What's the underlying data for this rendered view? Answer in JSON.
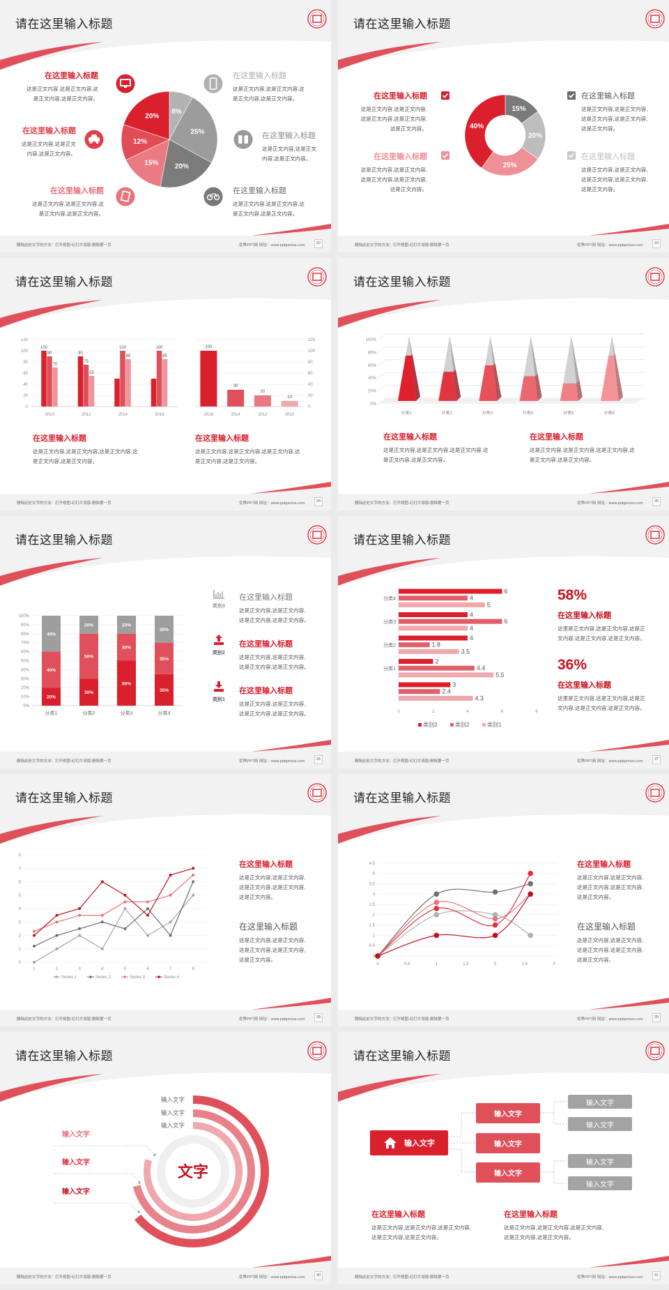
{
  "deck": {
    "footer_note": "删除此处文字的方法：打开视图-幻灯片母版-删除第一页",
    "brand": "优界PPT网",
    "website": "网址：www.pptgenius.com"
  },
  "colors": {
    "primary": "#d9202c",
    "secondary": "#e0505a",
    "light": "#ef959b",
    "gray": "#9e9e9e",
    "background": "#f2f2f2"
  },
  "slides": [
    {
      "title": "请在这里输入标题",
      "page": "32",
      "icons": [
        "monitor-icon",
        "car-icon",
        "book-icon",
        "phone-icon",
        "binoculars-icon",
        "bicycle-icon"
      ],
      "blocks": [
        {
          "title": "在这里输入标题",
          "body": "这是正文内容,这是正文内容,这\n是正文内容,这是正文内容。"
        },
        {
          "title": "在这里输入标题",
          "body": "这是正文内容,这是正文\n内容,这是正文内容。"
        },
        {
          "title": "在这里输入标题",
          "body": "这是正文内容,这是正文内容,这\n是正文内容,这是正文内容。"
        },
        {
          "title": "在这里输入标题",
          "body": "这是正文内容,这是正文内容,这\n是正文内容,这是正文内容。"
        },
        {
          "title": "在这里输入标题",
          "body": "这是正文内容,这是正文\n内容,这是正文内容。"
        },
        {
          "title": "在这里输入标题",
          "body": "这是正文内容,这是正文内容,这\n是正文内容,这是正文内容。"
        }
      ]
    },
    {
      "title": "请在这里输入标题",
      "page": "33",
      "blocks": [
        {
          "title": "在这里输入标题",
          "body": "这是正文内容,这是正文内容,\n这是正文内容,这是正文内容,\n这是正文内容。"
        },
        {
          "title": "在这里输入标题",
          "body": "这是正文内容,这是正文内容,\n这是正文内容,这是正文内容,\n这是正文内容。"
        },
        {
          "title": "在这里输入标题",
          "body": "这是正文内容,这是正文内容,\n这是正文内容,这是正文内容,\n这是正文内容。"
        },
        {
          "title": "在这里输入标题",
          "body": "这是正文内容,这是正文内容,\n这是正文内容,这是正文内容,\n这是正文内容。"
        }
      ]
    },
    {
      "title": "请在这里输入标题",
      "page": "34",
      "blocks": [
        {
          "title": "在这里输入标题",
          "body": "这是正文内容,这是正文内容,这是正文内容,这\n是正文内容,这是正文内容。"
        },
        {
          "title": "在这里输入标题",
          "body": "这是正文内容,这是正文内容,这是正文内容,这\n是正文内容,这是正文内容。"
        }
      ]
    },
    {
      "title": "请在这里输入标题",
      "page": "35",
      "blocks": [
        {
          "title": "在这里输入标题",
          "body": "这是正文内容,这是正文内容,这是正文内容,这\n是正文内容,这是正文内容。"
        },
        {
          "title": "在这里输入标题",
          "body": "这是正文内容,这是正文内容,这是正文内容,这\n是正文内容,这是正文内容。"
        }
      ]
    },
    {
      "title": "请在这里输入标题",
      "page": "36",
      "icon_labels": [
        "类别3",
        "类别2",
        "类别1"
      ],
      "blocks": [
        {
          "title": "在这里输入标题",
          "body": "这是正文内容,这是正文内容,\n这是正文内容,这是正文内容。"
        },
        {
          "title": "在这里输入标题",
          "body": "这是正文内容,这是正文内容,\n这是正文内容,这是正文内容。"
        },
        {
          "title": "在这里输入标题",
          "body": "这是正文内容,这是正文内容,\n这是正文内容,这是正文内容。"
        }
      ]
    },
    {
      "title": "请在这里输入标题",
      "page": "37",
      "stats": [
        "58%",
        "36%"
      ],
      "blocks": [
        {
          "title": "在这里输入标题",
          "body": "这里是正文内容,这是正文内容,这是正\n文内容,这是正文内容,这是正文内容。"
        },
        {
          "title": "在这里输入标题",
          "body": "这里是正文内容,这是正文内容,这是正\n文内容,这是正文内容,这是正文内容。"
        }
      ]
    },
    {
      "title": "请在这里输入标题",
      "page": "38",
      "blocks": [
        {
          "title": "在这里输入标题",
          "body": "这是正文内容,这是正文内容,\n这是正文内容,这是正文内容,\n这是正文内容。"
        },
        {
          "title": "在这里输入标题",
          "body": "这是正文内容,这是正文内容,\n这是正文内容,这是正文内容,\n这是正文内容。"
        }
      ]
    },
    {
      "title": "请在这里输入标题",
      "page": "39",
      "blocks": [
        {
          "title": "在这里输入标题",
          "body": "这是正文内容,这是正文内容,\n这是正文内容,这是正文内容,\n这是正文内容。"
        },
        {
          "title": "在这里输入标题",
          "body": "这是正文内容,这是正文内容,\n这是正文内容,这是正文内容,\n这是正文内容。"
        }
      ]
    },
    {
      "title": "请在这里输入标题",
      "page": "40",
      "center_label": "文字",
      "ring_labels": [
        "输入文字",
        "输入文字",
        "输入文字"
      ],
      "side_labels": [
        "输入文字",
        "输入文字",
        "输入文字"
      ],
      "ring_levels": [
        0.64,
        0.71,
        0.79
      ]
    },
    {
      "title": "请在这里输入标题",
      "page": "41",
      "tree": {
        "root": "输入文字",
        "branches": [
          "输入文字",
          "输入文字",
          "输入文字"
        ],
        "leaves": [
          "输入文字",
          "输入文字",
          "输入文字",
          "输入文字"
        ]
      },
      "blocks": [
        {
          "title": "在这里输入标题",
          "body": "这是正文内容,这是正文内容,这是正文内容,\n这是正文内容,这是正文内容。"
        },
        {
          "title": "在这里输入标题",
          "body": "这是正文内容,这是正文内容,这是正文内容,\n这是正文内容,这是正文内容。"
        }
      ]
    }
  ],
  "chart_data": [
    {
      "type": "pie",
      "values": [
        8,
        25,
        20,
        15,
        12,
        20
      ],
      "labels": [
        "8%",
        "25%",
        "20%",
        "15%",
        "12%",
        "20%"
      ],
      "colors": [
        "#b3b3b3",
        "#9c9c9c",
        "#7b7b7b",
        "#ec7a82",
        "#e24c57",
        "#d9202c"
      ]
    },
    {
      "type": "pie",
      "donut": true,
      "values": [
        15,
        20,
        25,
        40
      ],
      "labels": [
        "15%",
        "20%",
        "25%",
        "40%"
      ],
      "colors": [
        "#7a7a7a",
        "#bdbdbd",
        "#ef8f96",
        "#d9202c"
      ]
    },
    {
      "type": "bar",
      "categories": [
        "2010",
        "2012",
        "2014",
        "2016"
      ],
      "ylim": [
        0,
        120
      ],
      "grid": true,
      "series": [
        {
          "values": [
            100,
            90,
            50,
            50
          ],
          "labels": [
            "100",
            "90",
            "",
            ""
          ],
          "color": "#d9202c"
        },
        {
          "values": [
            90,
            75,
            100,
            100
          ],
          "labels": [
            "90",
            "75",
            "100",
            "100"
          ],
          "color": "#e0505a"
        },
        {
          "values": [
            70,
            55,
            85,
            85
          ],
          "labels": [
            "70",
            "55",
            "85",
            "85"
          ],
          "color": "#ef959b"
        }
      ]
    },
    {
      "type": "bar",
      "categories": [
        "2016",
        "2014",
        "2012",
        "2010"
      ],
      "values": [
        100,
        30,
        20,
        10
      ],
      "labels": [
        "100",
        "30",
        "20",
        "10"
      ],
      "ylim": [
        0,
        120
      ],
      "y_axis": "right",
      "grid": true,
      "colors": [
        "#d9202c",
        "#e0505a",
        "#e97880",
        "#f0a8ad"
      ]
    },
    {
      "type": "bar",
      "style": "3d-pyramid",
      "categories": [
        "分类1",
        "分类2",
        "分类3",
        "分类4",
        "分类5",
        "分类6"
      ],
      "values": [
        70,
        45,
        55,
        38,
        27,
        70
      ],
      "ylim": [
        0,
        100
      ],
      "unit": "%",
      "grid": true,
      "colors": [
        "#e0202c",
        "#e33540",
        "#e8505a",
        "#ec6870",
        "#f07f86",
        "#f4929a"
      ]
    },
    {
      "type": "bar",
      "stacked": true,
      "categories": [
        "分类1",
        "分类2",
        "分类3",
        "分类4"
      ],
      "ylim": [
        0,
        100
      ],
      "unit": "%",
      "grid": true,
      "series": [
        {
          "name": "类别1",
          "values": [
            20,
            30,
            50,
            35
          ],
          "color": "#d9202c"
        },
        {
          "name": "类别2",
          "values": [
            40,
            50,
            30,
            35
          ],
          "color": "#e0505a"
        },
        {
          "name": "类别3",
          "values": [
            40,
            20,
            20,
            30
          ],
          "color": "#9e9e9e"
        }
      ]
    },
    {
      "type": "bar",
      "orientation": "horizontal",
      "categories": [
        "分类4",
        "分类3",
        "分类2",
        "分类1",
        ""
      ],
      "xlim": [
        0,
        8
      ],
      "legend": "bottom",
      "series": [
        {
          "name": "类别3",
          "values": [
            6,
            4,
            4,
            2,
            3
          ],
          "color": "#d9202c"
        },
        {
          "name": "类别2",
          "values": [
            4,
            6,
            1.8,
            4.4,
            2.4
          ],
          "color": "#e0606a"
        },
        {
          "name": "类别1",
          "values": [
            5,
            4,
            3.5,
            5.5,
            4.3
          ],
          "color": "#f0a8ad"
        }
      ]
    },
    {
      "type": "line",
      "x": [
        1,
        2,
        3,
        4,
        5,
        6,
        7,
        8
      ],
      "ylim": [
        0,
        8
      ],
      "grid": true,
      "legend": "bottom",
      "series": [
        {
          "name": "Series 1",
          "values": [
            0,
            1,
            2,
            1,
            4,
            2,
            3,
            5
          ],
          "color": "#a6a6a6"
        },
        {
          "name": "Series 2",
          "values": [
            1.2,
            2,
            2.5,
            3,
            2.5,
            4,
            2,
            6
          ],
          "color": "#6d6d6d"
        },
        {
          "name": "Series 3",
          "values": [
            2.3,
            3,
            3.5,
            3.5,
            4.5,
            4.5,
            5,
            6.5
          ],
          "color": "#e8737b"
        },
        {
          "name": "Series 4",
          "values": [
            2,
            3.5,
            4,
            6,
            5,
            3.5,
            6.5,
            7
          ],
          "color": "#c0101c"
        }
      ]
    },
    {
      "type": "line",
      "smooth": true,
      "x": [
        0,
        1,
        2,
        2.6
      ],
      "xlim": [
        0,
        3
      ],
      "ylim": [
        0,
        4.5
      ],
      "grid": true,
      "series": [
        {
          "values": [
            0,
            3,
            3.1,
            3.5
          ],
          "color": "#707070"
        },
        {
          "values": [
            0,
            2,
            2,
            1
          ],
          "color": "#b0b0b0"
        },
        {
          "values": [
            0,
            2.6,
            1.8,
            3
          ],
          "color": "#e8737b"
        },
        {
          "values": [
            0,
            2.3,
            1.5,
            4
          ],
          "color": "#e0303c"
        },
        {
          "values": [
            0,
            1,
            1,
            3
          ],
          "color": "#c0101c"
        }
      ]
    }
  ]
}
